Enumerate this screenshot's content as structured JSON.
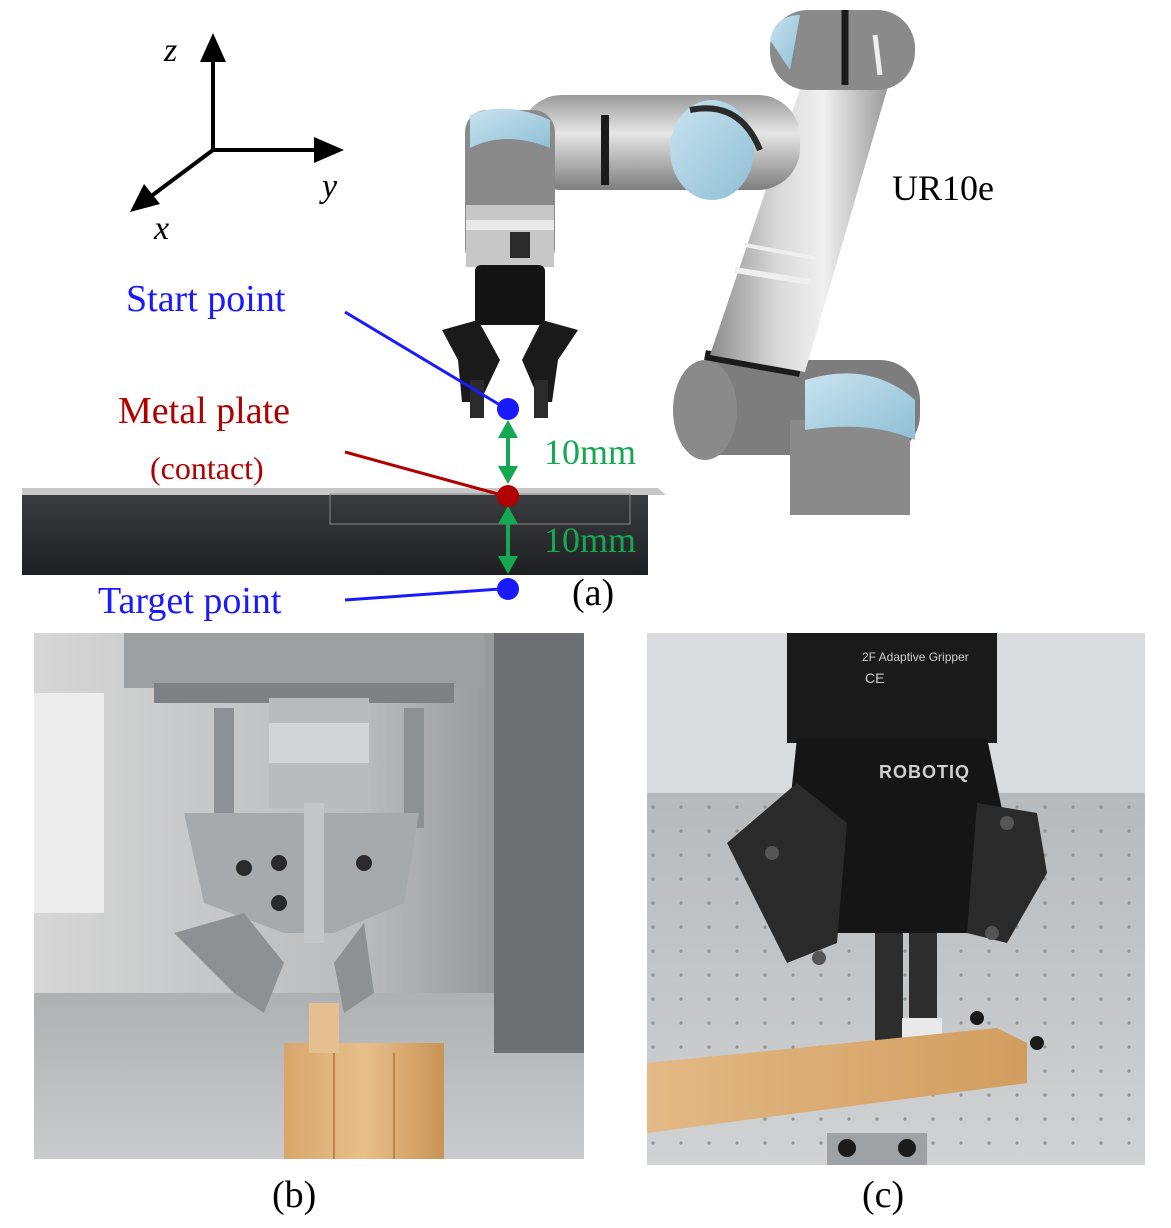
{
  "figure": {
    "axes": {
      "z": "z",
      "y": "y",
      "x": "x"
    },
    "robot_name": "UR10e",
    "panel_a": {
      "caption": "(a)",
      "start_point": "Start point",
      "metal_plate": "Metal plate",
      "contact": "(contact)",
      "target_point": "Target point",
      "distance_top": "10mm",
      "distance_bottom": "10mm"
    },
    "panel_b": {
      "caption": "(b)"
    },
    "panel_c": {
      "caption": "(c)",
      "gripper_brand": "ROBOTIQ",
      "gripper_model": "2F Adaptive Gripper",
      "ce_mark": "CE"
    },
    "colors": {
      "start_point": "#1a1aff",
      "metal_plate": "#b00000",
      "distance": "#14a850",
      "target_point": "#1a1aff"
    }
  }
}
